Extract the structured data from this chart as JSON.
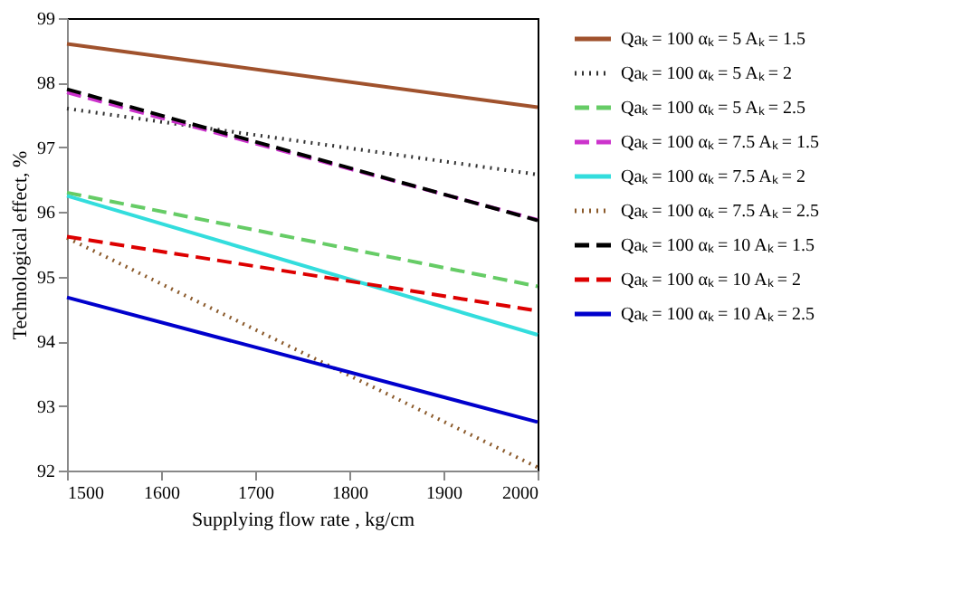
{
  "chart_data": {
    "type": "line",
    "xlabel": "Supplying flow rate , kg/cm",
    "ylabel": "Technological effect, %",
    "x": [
      1500,
      2000
    ],
    "xlim": [
      1500,
      2000
    ],
    "xticks": [
      1500,
      1600,
      1700,
      1800,
      1900,
      2000
    ],
    "ylim": [
      92,
      99
    ],
    "yticks": [
      92,
      93,
      94,
      95,
      96,
      97,
      98,
      99
    ],
    "grid": false,
    "legend": "right",
    "marker": "none",
    "series": [
      {
        "name": "Qaₖ = 100   αₖ = 5   Aₖ = 1.5",
        "color": "#a0522d",
        "line_style": "solid",
        "values": [
          98.6,
          97.62
        ]
      },
      {
        "name": "Qaₖ = 100   αₖ = 5   Aₖ = 2",
        "color": "#333333",
        "line_style": "dotted",
        "values": [
          97.6,
          96.58
        ]
      },
      {
        "name": "Qaₖ = 100   αₖ = 5   Aₖ = 2.5",
        "color": "#66cc66",
        "line_style": "dashed",
        "values": [
          96.3,
          94.85
        ]
      },
      {
        "name": "Qaₖ = 100   αₖ = 7.5   Aₖ = 1.5",
        "color": "#cc33cc",
        "line_style": "dashed",
        "values": [
          97.85,
          95.88
        ]
      },
      {
        "name": "Qaₖ = 100   αₖ = 7.5   Aₖ = 2",
        "color": "#33dddd",
        "line_style": "solid",
        "values": [
          96.25,
          94.1
        ]
      },
      {
        "name": "Qaₖ = 100   αₖ = 7.5   Aₖ = 2.5",
        "color": "#8b5a2b",
        "line_style": "dotted",
        "values": [
          95.6,
          92.05
        ]
      },
      {
        "name": "Qaₖ = 100   αₖ = 10   Aₖ = 1.5",
        "color": "#000000",
        "line_style": "dashed",
        "values": [
          97.9,
          95.87
        ]
      },
      {
        "name": "Qaₖ = 100   αₖ = 10   Aₖ = 2",
        "color": "#dd0000",
        "line_style": "dashed",
        "values": [
          95.62,
          94.47
        ]
      },
      {
        "name": "Qaₖ = 100   αₖ = 10   Aₖ = 2.5",
        "color": "#0000cc",
        "line_style": "solid",
        "values": [
          94.68,
          92.75
        ]
      }
    ]
  }
}
